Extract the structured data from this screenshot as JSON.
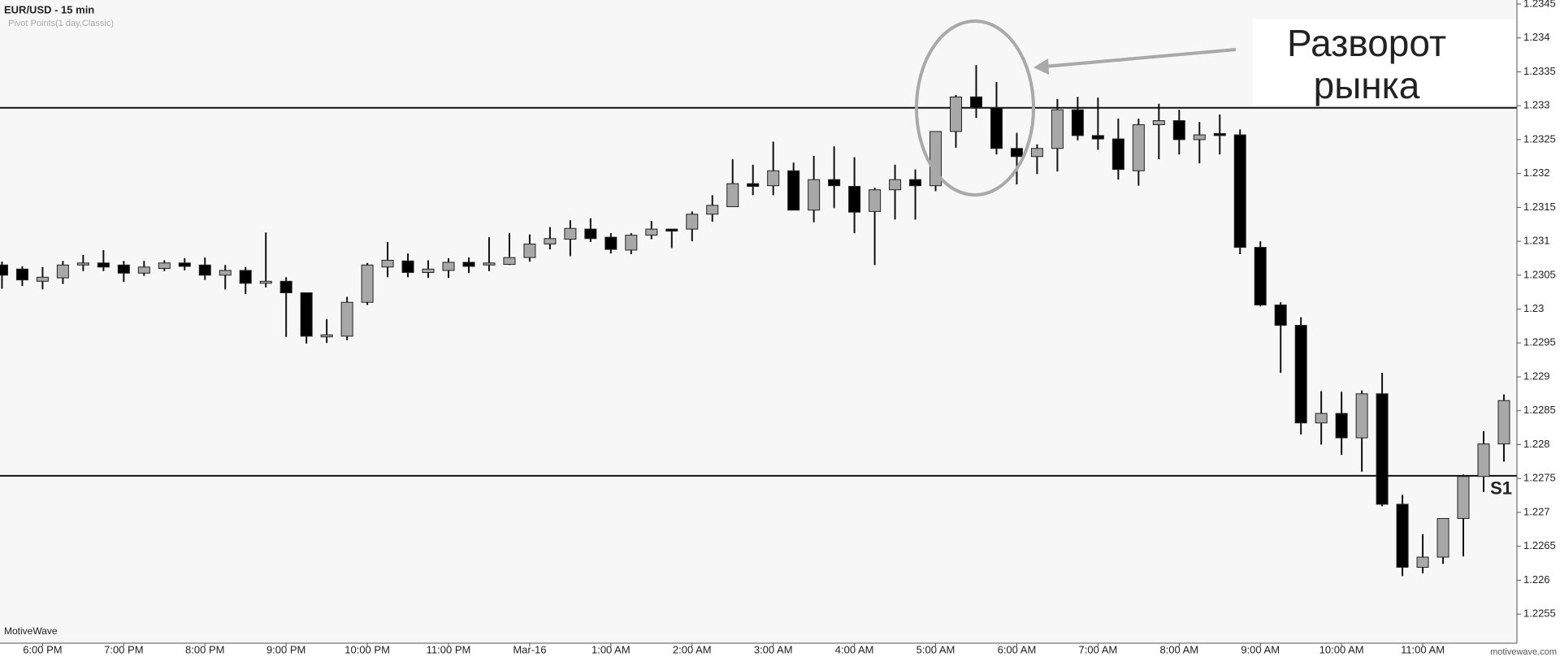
{
  "chart_data": {
    "type": "candlestick",
    "title": "EUR/USD - 15 min",
    "subtitle": "Pivot Points(1 day,Classic)",
    "watermark": "MotiveWave",
    "footer": "motivewave.com",
    "annotation": [
      "Разворот",
      "рынка"
    ],
    "categories": [
      null,
      null,
      "6:00 PM",
      null,
      null,
      null,
      "7:00 PM",
      null,
      null,
      null,
      "8:00 PM",
      null,
      null,
      null,
      "9:00 PM",
      null,
      null,
      null,
      "10:00 PM",
      null,
      null,
      null,
      "11:00 PM",
      null,
      null,
      null,
      "Mar-16",
      null,
      null,
      null,
      "1:00 AM",
      null,
      null,
      null,
      "2:00 AM",
      null,
      null,
      null,
      "3:00 AM",
      null,
      null,
      null,
      "4:00 AM",
      null,
      null,
      null,
      "5:00 AM",
      null,
      null,
      null,
      "6:00 AM",
      null,
      null,
      null,
      "7:00 AM",
      null,
      null,
      null,
      "8:00 AM",
      null,
      null,
      null,
      "9:00 AM",
      null,
      null,
      null,
      "10:00 AM",
      null,
      null,
      null,
      "11:00 AM",
      null,
      null,
      null,
      null
    ],
    "open": [
      1.23065,
      1.23059,
      1.23041,
      1.23046,
      1.23065,
      1.23068,
      1.23065,
      1.23053,
      1.2306,
      1.23068,
      1.23065,
      1.2305,
      1.23057,
      1.23038,
      1.23041,
      1.23024,
      1.22959,
      1.2296,
      1.2301,
      1.23062,
      1.23071,
      1.23054,
      1.23057,
      1.23069,
      1.23065,
      1.23066,
      1.23076,
      1.23096,
      1.23103,
      1.23118,
      1.23106,
      1.23087,
      1.23109,
      1.23118,
      1.23118,
      1.2314,
      1.23151,
      1.23185,
      1.23182,
      1.23204,
      1.23146,
      1.23191,
      1.23181,
      1.23144,
      1.23176,
      1.23191,
      1.23182,
      1.23262,
      1.23313,
      1.23297,
      1.23237,
      1.23225,
      1.23237,
      1.23294,
      1.23256,
      1.23251,
      1.23204,
      1.23272,
      1.23278,
      1.2325,
      1.23259,
      1.23257,
      1.23091,
      1.23006,
      1.22976,
      1.22832,
      1.22846,
      1.2281,
      1.22875,
      1.22712,
      1.22619,
      1.22634,
      1.22691,
      1.22753,
      1.22801
    ],
    "high": [
      1.2307,
      1.23063,
      1.23062,
      1.23071,
      1.2308,
      1.23087,
      1.23071,
      1.23071,
      1.23072,
      1.23075,
      1.23076,
      1.23065,
      1.23062,
      1.23113,
      1.23047,
      1.23024,
      1.22985,
      1.23018,
      1.23068,
      1.23099,
      1.23082,
      1.23072,
      1.23075,
      1.23076,
      1.23106,
      1.23112,
      1.2311,
      1.23121,
      1.23131,
      1.23134,
      1.23112,
      1.23112,
      1.2313,
      1.23118,
      1.23144,
      1.23168,
      1.23221,
      1.23213,
      1.23247,
      1.23216,
      1.23226,
      1.2324,
      1.23224,
      1.23179,
      1.23213,
      1.23206,
      1.23262,
      1.23316,
      1.2336,
      1.23335,
      1.2326,
      1.23243,
      1.2331,
      1.23313,
      1.23312,
      1.23281,
      1.23281,
      1.23303,
      1.23294,
      1.23276,
      1.23287,
      1.23265,
      1.231,
      1.2301,
      1.22988,
      1.22879,
      1.22878,
      1.2288,
      1.22906,
      1.22726,
      1.22668,
      1.22691,
      1.22756,
      1.2282,
      1.22874
    ],
    "low": [
      1.2303,
      1.23034,
      1.23029,
      1.23037,
      1.23056,
      1.23056,
      1.2304,
      1.23049,
      1.23056,
      1.23057,
      1.23043,
      1.23029,
      1.23022,
      1.23032,
      1.22959,
      1.22949,
      1.2295,
      1.22954,
      1.23006,
      1.23047,
      1.23047,
      1.23046,
      1.23046,
      1.23053,
      1.23056,
      1.23065,
      1.2307,
      1.23088,
      1.23078,
      1.23099,
      1.23082,
      1.23081,
      1.23103,
      1.2309,
      1.231,
      1.23129,
      1.23151,
      1.23168,
      1.23168,
      1.23146,
      1.23128,
      1.23149,
      1.23112,
      1.23065,
      1.23132,
      1.23132,
      1.23174,
      1.23238,
      1.23282,
      1.23228,
      1.23184,
      1.23199,
      1.23203,
      1.23249,
      1.23235,
      1.23191,
      1.23182,
      1.23221,
      1.23228,
      1.23215,
      1.23228,
      1.23081,
      1.23004,
      1.22906,
      1.22815,
      1.228,
      1.22785,
      1.2276,
      1.22709,
      1.22606,
      1.2261,
      1.22624,
      1.22635,
      1.2273,
      1.22775
    ],
    "close": [
      1.2305,
      1.23043,
      1.23047,
      1.23065,
      1.23068,
      1.23062,
      1.23053,
      1.23062,
      1.23068,
      1.23063,
      1.2305,
      1.23057,
      1.23038,
      1.23041,
      1.23024,
      1.2296,
      1.22962,
      1.2301,
      1.23065,
      1.23072,
      1.23054,
      1.23059,
      1.23069,
      1.23063,
      1.23068,
      1.23076,
      1.23096,
      1.23104,
      1.23119,
      1.23104,
      1.23088,
      1.23109,
      1.23118,
      1.23115,
      1.2314,
      1.23153,
      1.23185,
      1.23181,
      1.23204,
      1.23146,
      1.23191,
      1.23182,
      1.23143,
      1.23176,
      1.23191,
      1.23182,
      1.23262,
      1.23313,
      1.23297,
      1.23237,
      1.23225,
      1.23237,
      1.23294,
      1.23256,
      1.23251,
      1.23206,
      1.23272,
      1.23278,
      1.2325,
      1.23257,
      1.23256,
      1.23091,
      1.23006,
      1.22976,
      1.22832,
      1.22846,
      1.2281,
      1.22875,
      1.22712,
      1.22619,
      1.22634,
      1.22691,
      1.22753,
      1.22801,
      1.22865
    ],
    "up_color": "#a8a8a8",
    "down_color": "#000000",
    "pivot_lines": [
      {
        "value": 1.23297
      },
      {
        "value": 1.22754,
        "label": "S1"
      }
    ],
    "ylim": [
      1.22507,
      1.23456
    ],
    "yticks": [
      1.2255,
      1.226,
      1.2265,
      1.227,
      1.2275,
      1.228,
      1.2285,
      1.229,
      1.2295,
      1.23,
      1.2305,
      1.231,
      1.2315,
      1.232,
      1.2325,
      1.233,
      1.2335,
      1.234,
      1.2345
    ]
  }
}
